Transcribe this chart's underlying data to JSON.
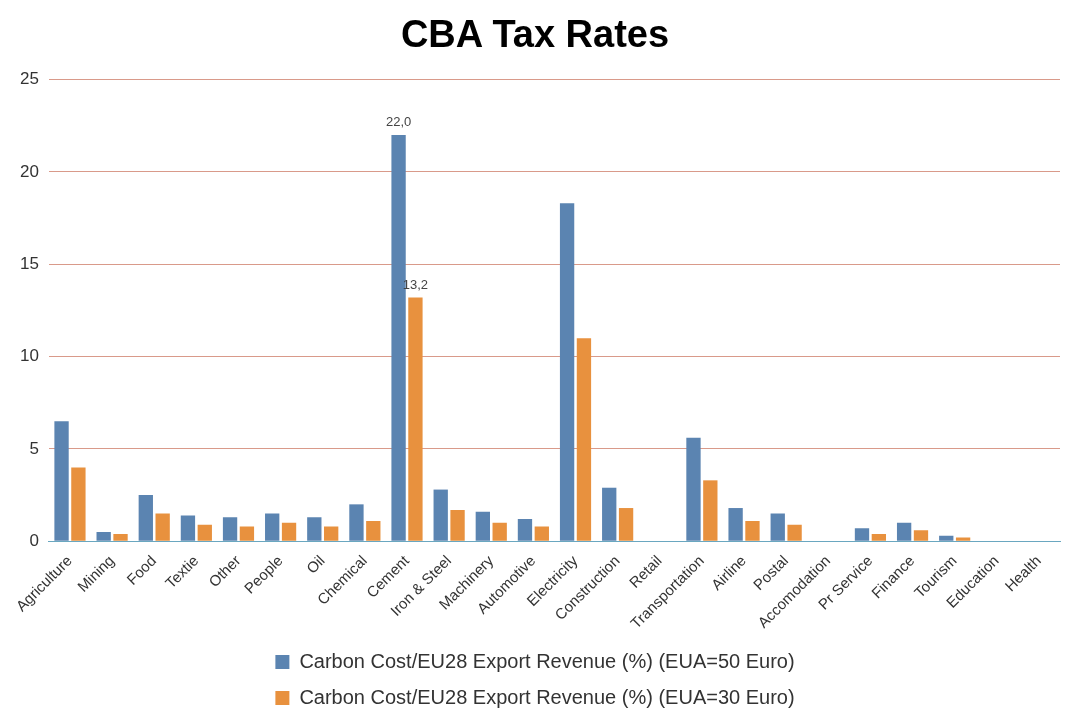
{
  "chart_data": {
    "type": "bar",
    "title": "CBA Tax Rates",
    "categories": [
      "Agriculture",
      "Mining",
      "Food",
      "Textie",
      "Other",
      "People",
      "Oil",
      "Chemical",
      "Cement",
      "Iron & Steel",
      "Machinery",
      "Automotive",
      "Electricity",
      "Construction",
      "Retail",
      "Transportation",
      "Airline",
      "Postal",
      "Accomodation",
      "Pr Service",
      "Finance",
      "Tourism",
      "Education",
      "Health"
    ],
    "series": [
      {
        "name": "Carbon Cost/EU28 Export Revenue (%) (EUA=50 Euro)",
        "color": "#5b84b1",
        "values": [
          6.5,
          0.5,
          2.5,
          1.4,
          1.3,
          1.5,
          1.3,
          2.0,
          22.0,
          2.8,
          1.6,
          1.2,
          18.3,
          2.9,
          0,
          5.6,
          1.8,
          1.5,
          0,
          0.7,
          1.0,
          0.3,
          0,
          0
        ],
        "value_labels": [
          null,
          null,
          null,
          null,
          null,
          null,
          null,
          null,
          "22,0",
          null,
          null,
          null,
          null,
          null,
          null,
          null,
          null,
          null,
          null,
          null,
          null,
          null,
          null,
          null
        ]
      },
      {
        "name": "Carbon Cost/EU28 Export Revenue (%) (EUA=30 Euro)",
        "color": "#e8913e",
        "values": [
          4.0,
          0.4,
          1.5,
          0.9,
          0.8,
          1.0,
          0.8,
          1.1,
          13.2,
          1.7,
          1.0,
          0.8,
          11.0,
          1.8,
          0,
          3.3,
          1.1,
          0.9,
          0,
          0.4,
          0.6,
          0.2,
          0,
          0
        ],
        "value_labels": [
          null,
          null,
          null,
          null,
          null,
          null,
          null,
          null,
          "13,2",
          null,
          null,
          null,
          null,
          null,
          null,
          null,
          null,
          null,
          null,
          null,
          null,
          null,
          null,
          null
        ]
      }
    ],
    "ylim": [
      0,
      25
    ],
    "yticks": [
      0,
      5,
      10,
      15,
      20,
      25
    ],
    "grid": "y",
    "legend": "bottom"
  }
}
